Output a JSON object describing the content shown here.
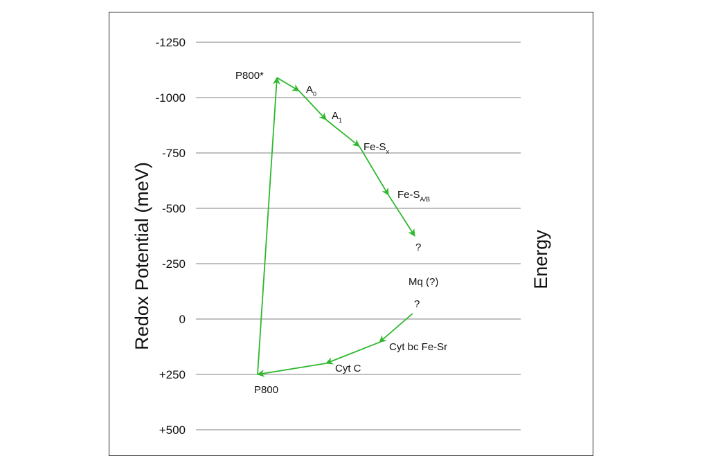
{
  "chart_data": {
    "type": "diagram",
    "title": "",
    "ylabel": "Redox Potential (meV)",
    "right_label": "Energy",
    "y_ticks": [
      {
        "value": -1250,
        "label": "-1250"
      },
      {
        "value": -1000,
        "label": "-1000"
      },
      {
        "value": -750,
        "label": "-750"
      },
      {
        "value": -500,
        "label": "-500"
      },
      {
        "value": -250,
        "label": "-250"
      },
      {
        "value": 0,
        "label": "0"
      },
      {
        "value": 250,
        "label": "+250"
      },
      {
        "value": 500,
        "label": "+500"
      }
    ],
    "ylim": [
      -1250,
      500
    ],
    "grid": true,
    "line_color": "#2db82d",
    "nodes": [
      {
        "id": "p800",
        "label": "P800",
        "sub": "",
        "redox": 250
      },
      {
        "id": "p800star",
        "label": "P800*",
        "sub": "",
        "redox": -1090
      },
      {
        "id": "a0",
        "label": "A",
        "sub": "0",
        "redox": -1030
      },
      {
        "id": "a1",
        "label": "A",
        "sub": "1",
        "redox": -900
      },
      {
        "id": "fesx",
        "label": "Fe-S",
        "sub": "x",
        "redox": -780
      },
      {
        "id": "fesab",
        "label": "Fe-S",
        "sub": "A/B",
        "redox": -560
      },
      {
        "id": "q1",
        "label": "?",
        "sub": "",
        "redox": -375
      },
      {
        "id": "mq",
        "label": "Mq (?)",
        "sub": "",
        "redox": -170
      },
      {
        "id": "q2",
        "label": "?",
        "sub": "",
        "redox": -25
      },
      {
        "id": "cytbc",
        "label": "Cyt bc Fe-Sr",
        "sub": "",
        "redox": 105
      },
      {
        "id": "cytc",
        "label": "Cyt C",
        "sub": "",
        "redox": 200
      }
    ]
  }
}
